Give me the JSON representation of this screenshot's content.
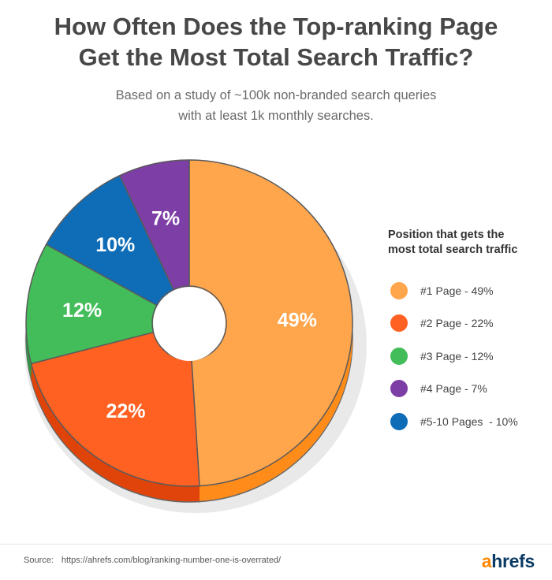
{
  "header": {
    "title_line1": "How Often Does the Top-ranking Page",
    "title_line2": "Get the Most Total Search Traffic?",
    "subtitle_line1": "Based on a study of ~100k non-branded search queries",
    "subtitle_line2": "with at least 1k monthly searches."
  },
  "legend": {
    "title_line1": "Position that gets the",
    "title_line2": "most total search traffic",
    "items": [
      {
        "label": "#1 Page - 49%",
        "color": "#ffa64d"
      },
      {
        "label": "#2 Page - 22%",
        "color": "#ff6122"
      },
      {
        "label": "#3 Page - 12%",
        "color": "#43bd59"
      },
      {
        "label": "#4 Page - 7%",
        "color": "#7d3ea6"
      },
      {
        "label": "#5-10 Pages  - 10%",
        "color": "#0f6db8"
      }
    ]
  },
  "chart_data": {
    "type": "pie",
    "donut": true,
    "legend_position": "right",
    "categories": [
      "#1 Page",
      "#2 Page",
      "#3 Page",
      "#5-10 Pages",
      "#4 Page"
    ],
    "values": [
      49,
      22,
      12,
      10,
      7
    ],
    "data_labels": [
      "49%",
      "22%",
      "12%",
      "10%",
      "7%"
    ],
    "colors": [
      "#ffa64d",
      "#ff6122",
      "#43bd59",
      "#0f6db8",
      "#7d3ea6"
    ],
    "side_colors": [
      "#ff8c1a",
      "#e0440a",
      "#2f9a44",
      "#0a4e85",
      "#5c2a7c"
    ]
  },
  "footer": {
    "source_label": "Source:",
    "source_url": "https://ahrefs.com/blog/ranking-number-one-is-overrated/",
    "brand_a": "a",
    "brand_rest": "hrefs"
  }
}
